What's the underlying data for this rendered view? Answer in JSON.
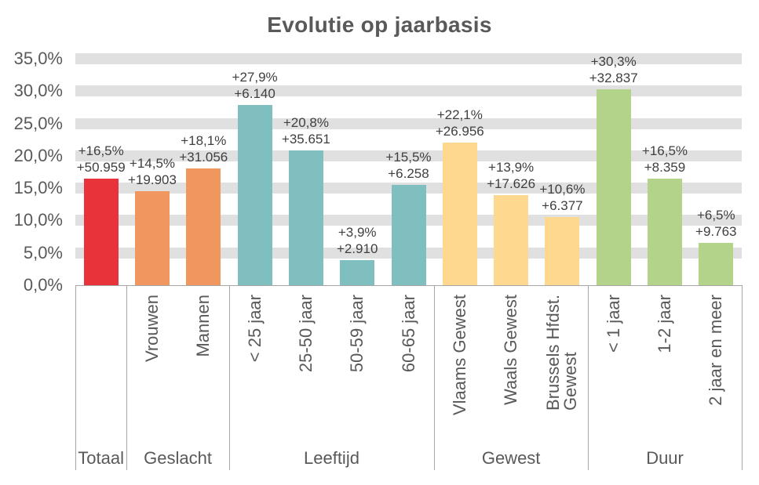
{
  "chart_data": {
    "type": "bar",
    "title": "Evolutie op jaarbasis",
    "value_axis": {
      "unit": "%",
      "min": 0,
      "max": 35,
      "step": 5,
      "gridbands": true,
      "ticks": [
        {
          "value": 0,
          "label": "0,0%"
        },
        {
          "value": 5,
          "label": "5,0%"
        },
        {
          "value": 10,
          "label": "10,0%"
        },
        {
          "value": 15,
          "label": "15,0%"
        },
        {
          "value": 20,
          "label": "20,0%"
        },
        {
          "value": 25,
          "label": "25,0%"
        },
        {
          "value": 30,
          "label": "30,0%"
        },
        {
          "value": 35,
          "label": "35,0%"
        }
      ]
    },
    "legend": "none",
    "groups": [
      {
        "label": "Totaal",
        "color": "#e9333b",
        "bars": [
          {
            "category": "",
            "pct": 16.5,
            "pct_label": "+16,5%",
            "abs_label": "+50.959"
          }
        ]
      },
      {
        "label": "Geslacht",
        "color": "#f0975f",
        "bars": [
          {
            "category": "Vrouwen",
            "pct": 14.5,
            "pct_label": "+14,5%",
            "abs_label": "+19.903"
          },
          {
            "category": "Mannen",
            "pct": 18.1,
            "pct_label": "+18,1%",
            "abs_label": "+31.056"
          }
        ]
      },
      {
        "label": "Leeftijd",
        "color": "#7fbfbf",
        "bars": [
          {
            "category": "< 25 jaar",
            "pct": 27.9,
            "pct_label": "+27,9%",
            "abs_label": "+6.140"
          },
          {
            "category": "25-50 jaar",
            "pct": 20.8,
            "pct_label": "+20,8%",
            "abs_label": "+35.651"
          },
          {
            "category": "50-59 jaar",
            "pct": 3.9,
            "pct_label": "+3,9%",
            "abs_label": "+2.910"
          },
          {
            "category": "60-65 jaar",
            "pct": 15.5,
            "pct_label": "+15,5%",
            "abs_label": "+6.258"
          }
        ]
      },
      {
        "label": "Gewest",
        "color": "#fdd88e",
        "bars": [
          {
            "category": "Vlaams Gewest",
            "pct": 22.1,
            "pct_label": "+22,1%",
            "abs_label": "+26.956"
          },
          {
            "category": "Waals Gewest",
            "pct": 13.9,
            "pct_label": "+13,9%",
            "abs_label": "+17.626"
          },
          {
            "category": "Brussels Hfdst.\nGewest",
            "pct": 10.6,
            "pct_label": "+10,6%",
            "abs_label": "+6.377"
          }
        ]
      },
      {
        "label": "Duur",
        "color": "#b3d38a",
        "bars": [
          {
            "category": "< 1 jaar",
            "pct": 30.3,
            "pct_label": "+30,3%",
            "abs_label": "+32.837"
          },
          {
            "category": "1-2 jaar",
            "pct": 16.5,
            "pct_label": "+16,5%",
            "abs_label": "+8.359"
          },
          {
            "category": "2 jaar en meer",
            "pct": 6.5,
            "pct_label": "+6,5%",
            "abs_label": "+9.763"
          }
        ]
      }
    ],
    "style_colors": {
      "gridband": "#e0e0e0",
      "axis_line": "#a6a6a6",
      "axis_text": "#595959",
      "data_label_text": "#3f3f3f"
    }
  }
}
